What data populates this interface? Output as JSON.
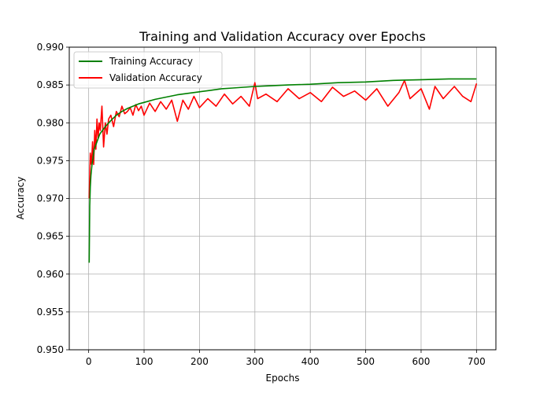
{
  "chart_data": {
    "type": "line",
    "title": "Training and Validation Accuracy over Epochs",
    "xlabel": "Epochs",
    "ylabel": "Accuracy",
    "xlim": [
      -35,
      735
    ],
    "ylim": [
      0.95,
      0.99
    ],
    "xticks": [
      0,
      100,
      200,
      300,
      400,
      500,
      600,
      700
    ],
    "yticks": [
      0.95,
      0.955,
      0.96,
      0.965,
      0.97,
      0.975,
      0.98,
      0.985,
      0.99
    ],
    "grid": true,
    "legend_position": "top-left",
    "series": [
      {
        "name": "Training Accuracy",
        "color": "#008000",
        "x": [
          1,
          2,
          3,
          4,
          6,
          8,
          10,
          15,
          20,
          25,
          30,
          40,
          50,
          60,
          70,
          80,
          90,
          100,
          120,
          140,
          160,
          180,
          200,
          220,
          240,
          260,
          280,
          300,
          330,
          360,
          400,
          450,
          500,
          550,
          600,
          650,
          700
        ],
        "values": [
          0.9615,
          0.969,
          0.9715,
          0.973,
          0.9745,
          0.9755,
          0.9765,
          0.9775,
          0.9785,
          0.979,
          0.9795,
          0.9803,
          0.981,
          0.9815,
          0.9819,
          0.9822,
          0.9825,
          0.9827,
          0.9831,
          0.9834,
          0.9837,
          0.9839,
          0.9841,
          0.9843,
          0.9845,
          0.9846,
          0.9847,
          0.9848,
          0.9849,
          0.985,
          0.9851,
          0.9853,
          0.9854,
          0.9856,
          0.9857,
          0.9858,
          0.9858
        ]
      },
      {
        "name": "Validation Accuracy",
        "color": "#ff0000",
        "x": [
          1,
          3,
          5,
          7,
          9,
          11,
          13,
          15,
          17,
          19,
          21,
          24,
          27,
          30,
          33,
          36,
          40,
          45,
          50,
          55,
          60,
          65,
          70,
          75,
          80,
          85,
          90,
          95,
          100,
          110,
          120,
          130,
          140,
          150,
          160,
          170,
          180,
          190,
          200,
          215,
          230,
          245,
          260,
          275,
          290,
          300,
          305,
          320,
          340,
          360,
          380,
          400,
          420,
          440,
          460,
          480,
          500,
          520,
          540,
          560,
          570,
          580,
          600,
          615,
          625,
          640,
          660,
          675,
          690,
          700
        ],
        "values": [
          0.97,
          0.976,
          0.9745,
          0.9775,
          0.9745,
          0.979,
          0.9765,
          0.9805,
          0.978,
          0.98,
          0.979,
          0.9822,
          0.9768,
          0.98,
          0.9785,
          0.9805,
          0.981,
          0.9795,
          0.9815,
          0.9808,
          0.9822,
          0.9812,
          0.9815,
          0.982,
          0.981,
          0.9824,
          0.9816,
          0.9822,
          0.981,
          0.9826,
          0.9815,
          0.9828,
          0.9818,
          0.983,
          0.9802,
          0.983,
          0.9818,
          0.9835,
          0.982,
          0.9832,
          0.9822,
          0.9838,
          0.9825,
          0.9835,
          0.9822,
          0.9853,
          0.9832,
          0.9838,
          0.9828,
          0.9845,
          0.9832,
          0.984,
          0.9828,
          0.9847,
          0.9835,
          0.9842,
          0.983,
          0.9845,
          0.9822,
          0.984,
          0.9856,
          0.9832,
          0.9845,
          0.9818,
          0.9848,
          0.9832,
          0.9848,
          0.9835,
          0.9828,
          0.9852
        ]
      }
    ]
  }
}
